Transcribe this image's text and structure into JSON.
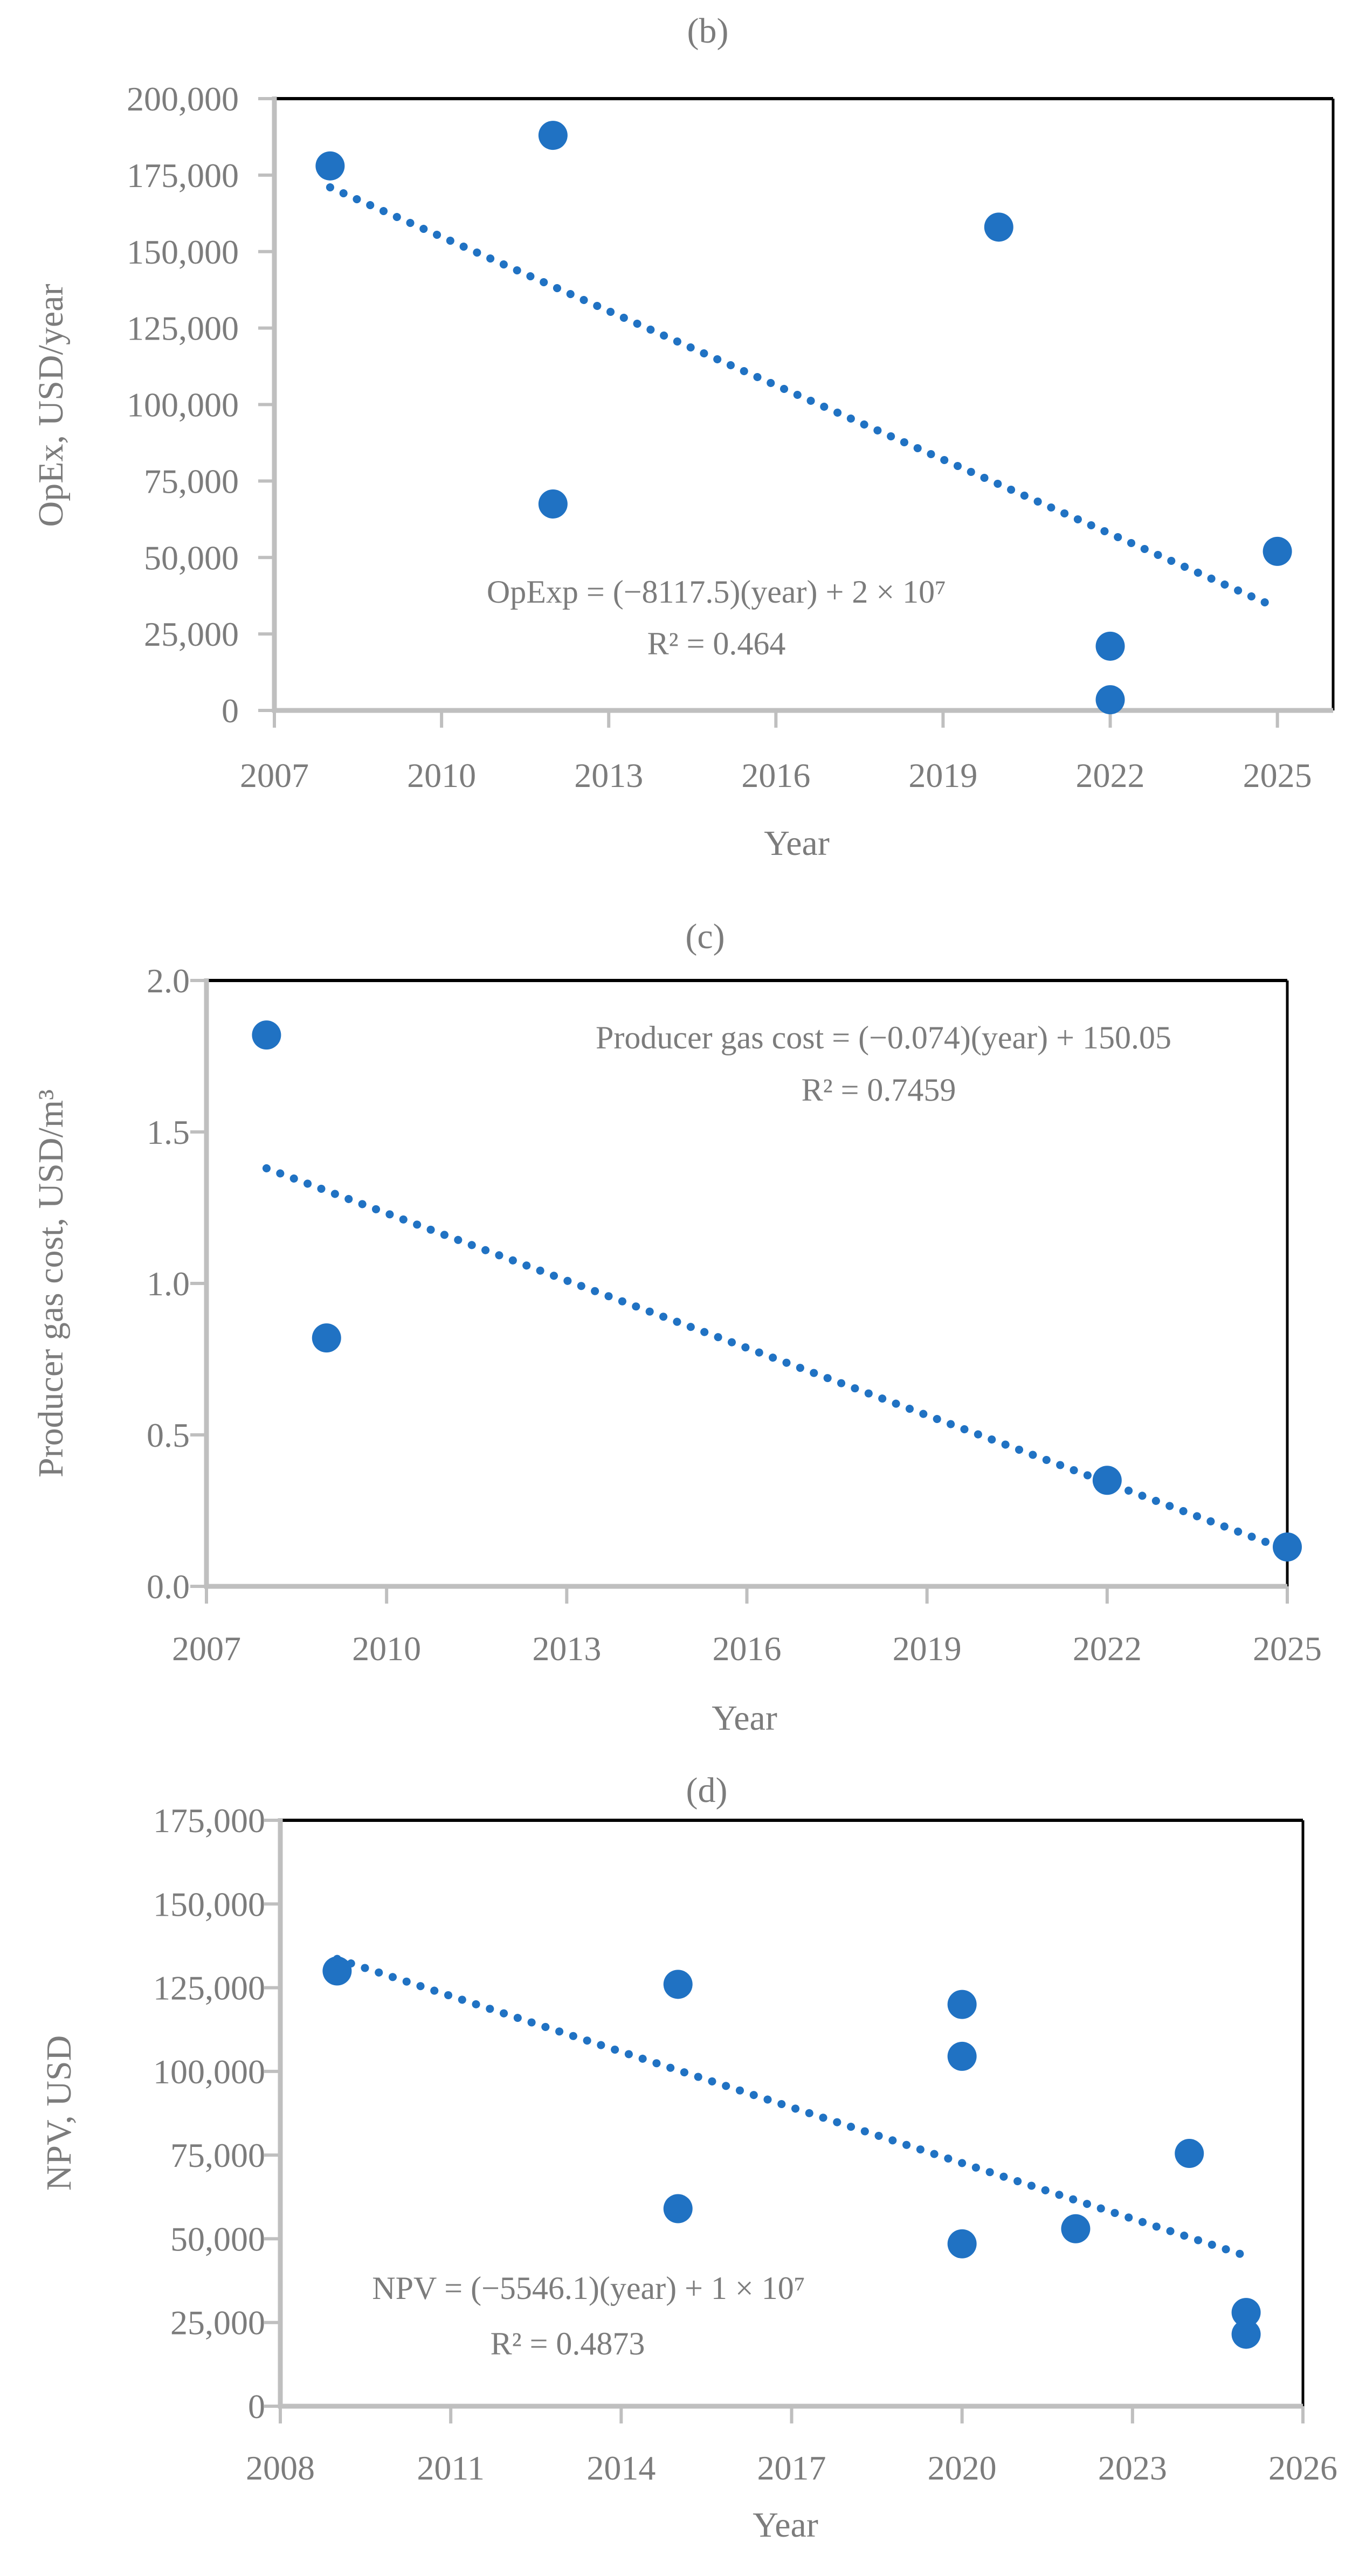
{
  "figure": {
    "background": "#ffffff"
  },
  "colors": {
    "point_blue": "#2072C3",
    "trendline_blue": "#2072C3",
    "axis_gray": "#BFBFBF",
    "frame_black": "#000000",
    "text_gray": "#7C7C7C"
  },
  "chart_data": [
    {
      "id": "b",
      "type": "scatter",
      "title": "(b)",
      "xlabel": "Year",
      "ylabel": "OpEx, USD/year",
      "equation": "OpExp = (−8117.5)(year) + 2 × 10⁷",
      "r_squared": "R² = 0.464",
      "xlim": [
        2007,
        2026
      ],
      "ylim": [
        0,
        200000
      ],
      "x_ticks": [
        2007,
        2010,
        2013,
        2016,
        2019,
        2022,
        2025
      ],
      "x_tick_labels": [
        "2007",
        "2010",
        "2013",
        "2016",
        "2019",
        "2022",
        "2025"
      ],
      "y_ticks": [
        0,
        25000,
        50000,
        75000,
        100000,
        125000,
        150000,
        175000,
        200000
      ],
      "y_tick_labels": [
        "0",
        "25,000",
        "50,000",
        "75,000",
        "100,000",
        "125,000",
        "150,000",
        "175,000",
        "200,000"
      ],
      "points": [
        [
          2008,
          178000
        ],
        [
          2012,
          188000
        ],
        [
          2012,
          67500
        ],
        [
          2020,
          158000
        ],
        [
          2022,
          21000
        ],
        [
          2022,
          3500
        ],
        [
          2025,
          52000
        ]
      ],
      "trendline": {
        "x1": 2008,
        "y1": 171000,
        "x2": 2025,
        "y2": 33500
      },
      "grid": false,
      "legend": null
    },
    {
      "id": "c",
      "type": "scatter",
      "title": "(c)",
      "xlabel": "Year",
      "ylabel": "Producer gas cost, USD/m³",
      "equation": "Producer gas cost = (−0.074)(year) + 150.05",
      "r_squared": "R² = 0.7459",
      "xlim": [
        2007,
        2025
      ],
      "ylim": [
        0,
        2
      ],
      "x_ticks": [
        2007,
        2010,
        2013,
        2016,
        2019,
        2022,
        2025
      ],
      "x_tick_labels": [
        "2007",
        "2010",
        "2013",
        "2016",
        "2019",
        "2022",
        "2025"
      ],
      "y_ticks": [
        0,
        0.5,
        1.0,
        1.5,
        2.0
      ],
      "y_tick_labels": [
        "0.0",
        "0.5",
        "1.0",
        "1.5",
        "2.0"
      ],
      "points": [
        [
          2008,
          1.82
        ],
        [
          2009,
          0.82
        ],
        [
          2022,
          0.35
        ],
        [
          2025,
          0.13
        ]
      ],
      "trendline": {
        "x1": 2008,
        "y1": 1.38,
        "x2": 2025,
        "y2": 0.12
      },
      "grid": false,
      "legend": null
    },
    {
      "id": "d",
      "type": "scatter",
      "title": "(d)",
      "xlabel": "Year",
      "ylabel": "NPV, USD",
      "equation": "NPV = (−5546.1)(year) + 1 × 10⁷",
      "r_squared": "R² = 0.4873",
      "xlim": [
        2008,
        2026
      ],
      "ylim": [
        0,
        175000
      ],
      "x_ticks": [
        2008,
        2011,
        2014,
        2017,
        2020,
        2023,
        2026
      ],
      "x_tick_labels": [
        "2008",
        "2011",
        "2014",
        "2017",
        "2020",
        "2023",
        "2026"
      ],
      "y_ticks": [
        0,
        25000,
        50000,
        75000,
        100000,
        125000,
        150000,
        175000
      ],
      "y_tick_labels": [
        "0",
        "25,000",
        "50,000",
        "75,000",
        "100,000",
        "125,000",
        "150,000",
        "175,000"
      ],
      "points": [
        [
          2009,
          130000
        ],
        [
          2015,
          126000
        ],
        [
          2015,
          59000
        ],
        [
          2020,
          120000
        ],
        [
          2020,
          104500
        ],
        [
          2020,
          48500
        ],
        [
          2022,
          53000
        ],
        [
          2024,
          75500
        ],
        [
          2025,
          28000
        ],
        [
          2025,
          21500
        ]
      ],
      "trendline": {
        "x1": 2009,
        "y1": 133600,
        "x2": 2025,
        "y2": 44900
      },
      "grid": false,
      "legend": null
    }
  ]
}
